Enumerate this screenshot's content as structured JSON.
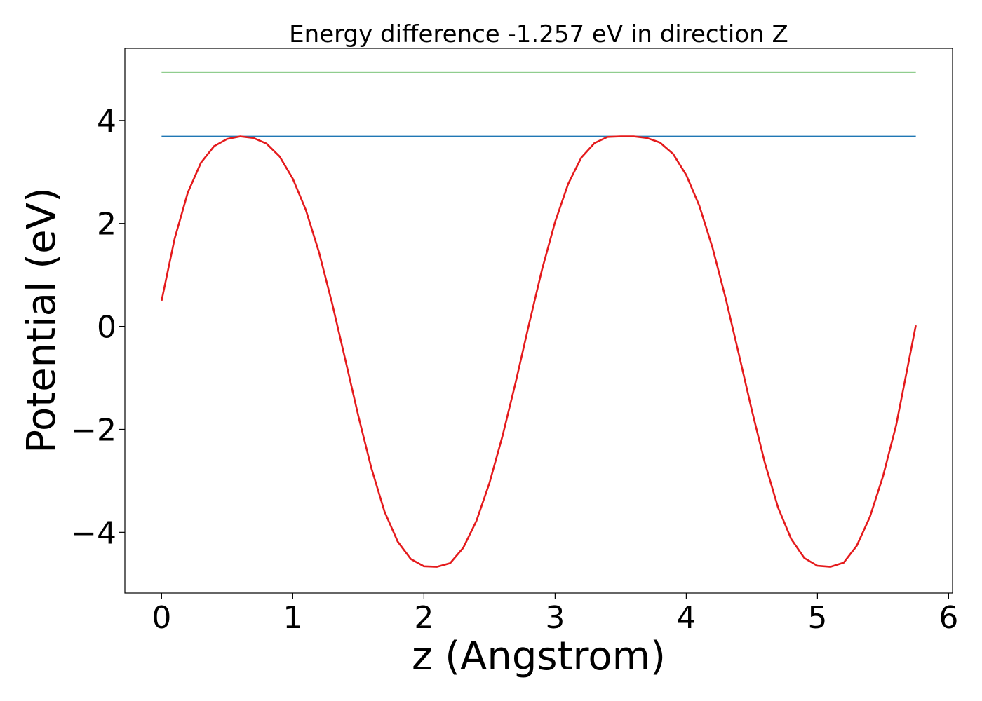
{
  "chart_data": {
    "type": "line",
    "title": "Energy difference -1.257 eV in direction Z",
    "xlabel": "z (Angstrom)",
    "ylabel": "Potential (eV)",
    "xlim": [
      -0.28,
      6.03
    ],
    "ylim": [
      -5.18,
      5.4
    ],
    "xticks": [
      0,
      1,
      2,
      3,
      4,
      5,
      6
    ],
    "xtick_labels": [
      "0",
      "1",
      "2",
      "3",
      "4",
      "5",
      "6"
    ],
    "yticks": [
      -4,
      -2,
      0,
      2,
      4
    ],
    "ytick_labels": [
      "−4",
      "−2",
      "0",
      "2",
      "4"
    ],
    "grid": false,
    "series": [
      {
        "role": "potential",
        "color": "#e41a1c",
        "x": [
          0.0,
          0.1,
          0.2,
          0.3,
          0.4,
          0.5,
          0.6,
          0.7,
          0.8,
          0.9,
          1.0,
          1.1,
          1.2,
          1.3,
          1.4,
          1.5,
          1.6,
          1.7,
          1.8,
          1.9,
          2.0,
          2.1,
          2.2,
          2.3,
          2.4,
          2.5,
          2.6,
          2.7,
          2.8,
          2.9,
          3.0,
          3.1,
          3.2,
          3.3,
          3.4,
          3.5,
          3.6,
          3.7,
          3.8,
          3.9,
          4.0,
          4.1,
          4.2,
          4.3,
          4.4,
          4.5,
          4.6,
          4.7,
          4.8,
          4.9,
          5.0,
          5.1,
          5.2,
          5.3,
          5.4,
          5.5,
          5.6,
          5.75
        ],
        "y": [
          0.5,
          1.71,
          2.6,
          3.18,
          3.5,
          3.64,
          3.69,
          3.66,
          3.55,
          3.3,
          2.87,
          2.26,
          1.44,
          0.45,
          -0.64,
          -1.74,
          -2.76,
          -3.6,
          -4.18,
          -4.52,
          -4.66,
          -4.67,
          -4.6,
          -4.3,
          -3.78,
          -3.04,
          -2.12,
          -1.08,
          0.03,
          1.1,
          2.03,
          2.77,
          3.28,
          3.56,
          3.68,
          3.69,
          3.69,
          3.66,
          3.57,
          3.35,
          2.94,
          2.34,
          1.53,
          0.55,
          -0.53,
          -1.63,
          -2.66,
          -3.52,
          -4.13,
          -4.5,
          -4.65,
          -4.67,
          -4.59,
          -4.26,
          -3.7,
          -2.91,
          -1.92,
          0.02
        ]
      },
      {
        "role": "max-level",
        "color": "#1f77b4",
        "x": [
          0.0,
          5.75
        ],
        "y": [
          3.69,
          3.69
        ]
      },
      {
        "role": "upper-level",
        "color": "#4daf4a",
        "x": [
          0.0,
          5.75
        ],
        "y": [
          4.94,
          4.94
        ]
      }
    ]
  }
}
